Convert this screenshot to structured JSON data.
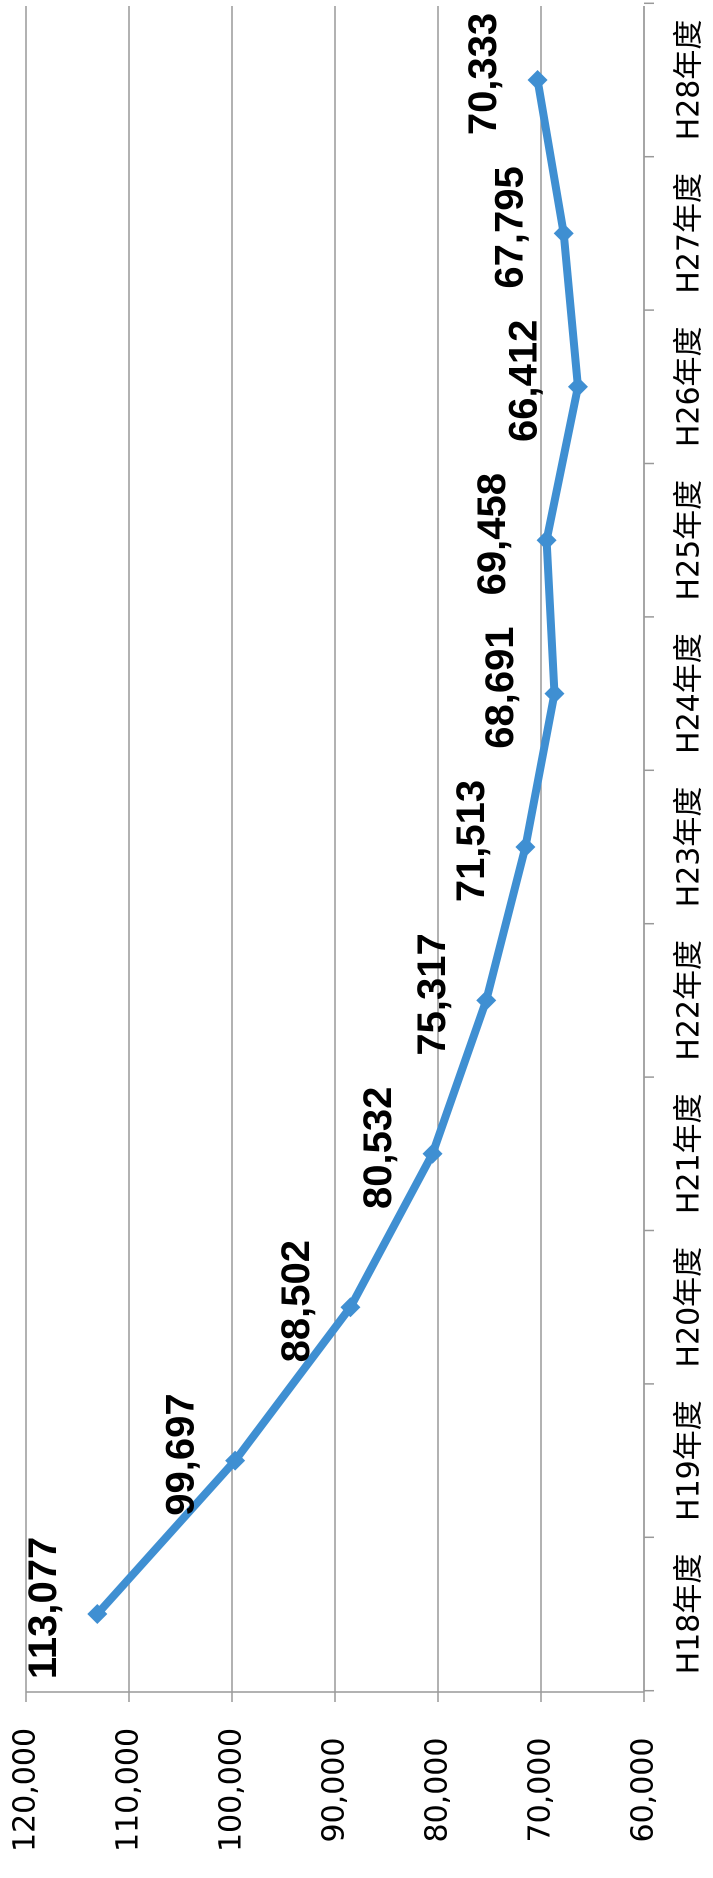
{
  "chart_data": {
    "type": "line",
    "categories": [
      "H18年度",
      "H19年度",
      "H20年度",
      "H21年度",
      "H22年度",
      "H23年度",
      "H24年度",
      "H25年度",
      "H26年度",
      "H27年度",
      "H28年度"
    ],
    "series": [
      {
        "color": "#3f8fd2",
        "values": [
          113077,
          99697,
          88502,
          80532,
          75317,
          71513,
          68691,
          69458,
          66412,
          67795,
          70333
        ],
        "value_labels": [
          "113,077",
          "99,697",
          "88,502",
          "80,532",
          "75,317",
          "71,513",
          "68,691",
          "69,458",
          "66,412",
          "67,795",
          "70,333"
        ]
      }
    ],
    "ylim": [
      60000,
      120000
    ],
    "yticks": [
      {
        "value": 60000,
        "label": "60,000"
      },
      {
        "value": 70000,
        "label": "70,000"
      },
      {
        "value": 80000,
        "label": "80,000"
      },
      {
        "value": 90000,
        "label": "90,000"
      },
      {
        "value": 100000,
        "label": "100,000"
      },
      {
        "value": 110000,
        "label": "110,000"
      },
      {
        "value": 120000,
        "label": "120,000"
      }
    ],
    "grid": true
  }
}
